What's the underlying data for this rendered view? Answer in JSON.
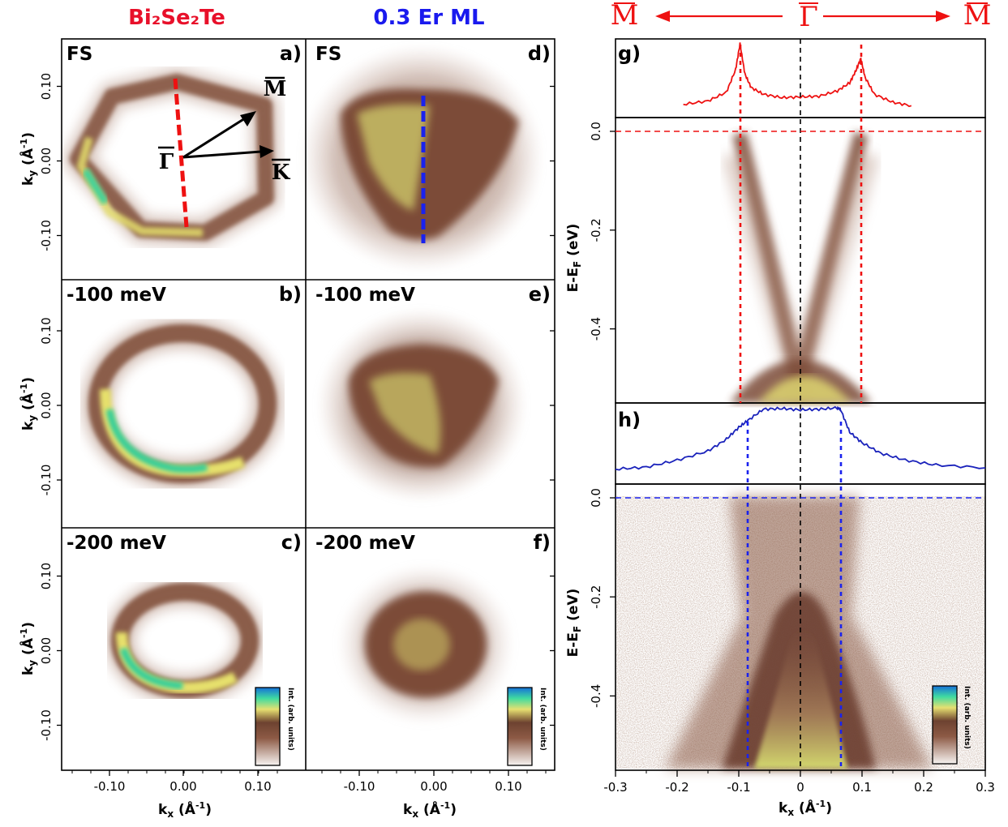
{
  "titles": {
    "left": "Bi₂Se₂Te",
    "left_color": "#e8102a",
    "middle": "0.3 Er ML",
    "middle_color": "#1a1aee"
  },
  "panels": [
    {
      "id": "a",
      "letter": "a)",
      "energy": "FS"
    },
    {
      "id": "b",
      "letter": "b)",
      "energy": "-100 meV"
    },
    {
      "id": "c",
      "letter": "c)",
      "energy": "-200 meV"
    },
    {
      "id": "d",
      "letter": "d)",
      "energy": "FS"
    },
    {
      "id": "e",
      "letter": "e)",
      "energy": "-100 meV"
    },
    {
      "id": "f",
      "letter": "f)",
      "energy": "-200 meV"
    },
    {
      "id": "g",
      "letter": "g)"
    },
    {
      "id": "h",
      "letter": "h)"
    }
  ],
  "bz_labels": {
    "gamma": "Γ",
    "m": "M",
    "k": "K"
  },
  "top_direction": {
    "left": "M",
    "center": "Γ",
    "right": "M",
    "color": "#e11"
  },
  "axes": {
    "ky_label": "k",
    "ky_sub": "y",
    "ky_unit": " (Å",
    "kx_label": "k",
    "kx_sub": "x",
    "kx_unit": " (Å",
    "inv": "-1",
    "close": ")",
    "e_label": "E-E",
    "e_sub": "F",
    "e_unit": " (eV)",
    "k_ticks": [
      "0.10",
      "0.00",
      "-0.10"
    ],
    "kx_ticks": [
      "-0.10",
      "0.00",
      "0.10"
    ],
    "e_ticks": [
      "0.0",
      "-0.2",
      "-0.4"
    ],
    "wide_kx_ticks": [
      "-0.3",
      "-0.2",
      "-0.1",
      "0",
      "0.1",
      "0.2",
      "0.3"
    ]
  },
  "colorbar": {
    "label": "Int. (arb. units)",
    "colors": [
      "#f6f2f0",
      "#9a6a55",
      "#6b3f2a",
      "#e8e070",
      "#3fe0a0",
      "#1a7fe0"
    ]
  },
  "chart_data": [
    {
      "type": "line",
      "panel": "g",
      "description_series": "MDC at Fermi level, Bi2Se2Te",
      "color": "#e11",
      "x": [
        -0.19,
        -0.15,
        -0.12,
        -0.105,
        -0.098,
        -0.09,
        -0.08,
        -0.06,
        -0.03,
        0.0,
        0.03,
        0.06,
        0.08,
        0.09,
        0.098,
        0.105,
        0.12,
        0.15,
        0.18
      ],
      "y": [
        0.1,
        0.15,
        0.28,
        0.62,
        1.0,
        0.55,
        0.35,
        0.25,
        0.2,
        0.21,
        0.22,
        0.3,
        0.42,
        0.6,
        0.78,
        0.5,
        0.25,
        0.13,
        0.08
      ],
      "peaks_x": [
        -0.098,
        0.098
      ],
      "xlim": [
        -0.3,
        0.3
      ]
    },
    {
      "type": "line",
      "panel": "h",
      "color": "#1a22bb",
      "x": [
        -0.3,
        -0.25,
        -0.2,
        -0.15,
        -0.12,
        -0.1,
        -0.085,
        -0.06,
        -0.03,
        0.0,
        0.03,
        0.06,
        0.065,
        0.08,
        0.1,
        0.13,
        0.17,
        0.22,
        0.3
      ],
      "y": [
        0.12,
        0.15,
        0.25,
        0.38,
        0.55,
        0.72,
        0.82,
        0.98,
        0.99,
        0.97,
        0.98,
        1.0,
        0.98,
        0.65,
        0.5,
        0.35,
        0.25,
        0.18,
        0.14
      ],
      "edges_x": [
        -0.085,
        0.065
      ],
      "xlim": [
        -0.3,
        0.3
      ]
    },
    {
      "type": "heatmap",
      "panel": "g-lower",
      "description_series": "E vs kx, Bi2Se2Te, Dirac cone",
      "xlim": [
        -0.3,
        0.3
      ],
      "ylim": [
        -0.55,
        0.0
      ],
      "dirac_point_eV": -0.5,
      "fermi_kx": [
        -0.098,
        0.098
      ]
    },
    {
      "type": "heatmap",
      "panel": "h-lower",
      "xlim": [
        -0.3,
        0.3
      ],
      "ylim": [
        -0.55,
        0.0
      ],
      "edges_kx": [
        -0.085,
        0.065
      ]
    }
  ]
}
